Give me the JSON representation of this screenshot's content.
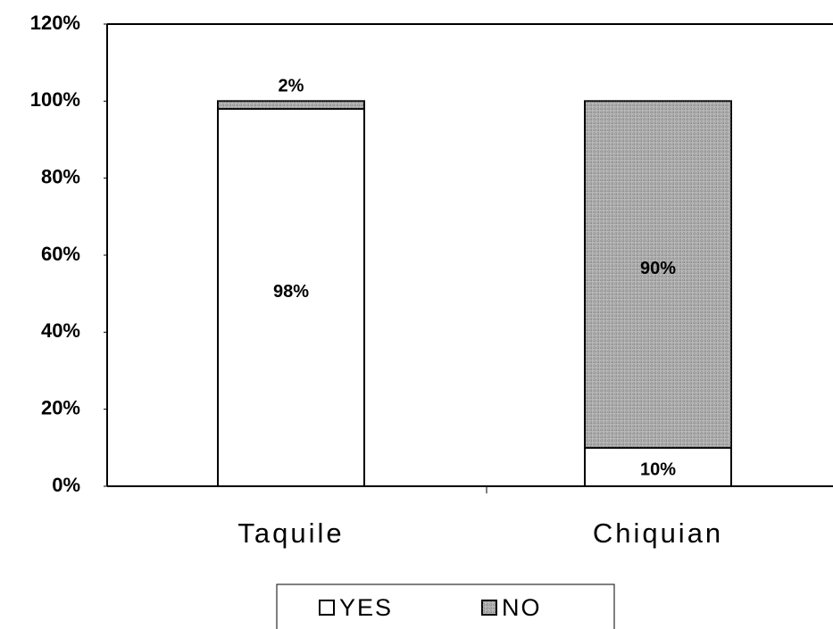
{
  "chart_data": {
    "type": "bar",
    "stacked": true,
    "categories": [
      "Taquile",
      "Chiquian"
    ],
    "series": [
      {
        "name": "YES",
        "color": "#ffffff",
        "values": [
          98,
          10
        ],
        "value_labels": [
          "98%",
          "10%"
        ]
      },
      {
        "name": "NO",
        "color": "#b8b8b8",
        "values": [
          2,
          90
        ],
        "value_labels": [
          "2%",
          "90%"
        ]
      }
    ],
    "ylim": [
      0,
      120
    ],
    "yticks": [
      {
        "value": 0,
        "label": "0%"
      },
      {
        "value": 20,
        "label": "20%"
      },
      {
        "value": 40,
        "label": "40%"
      },
      {
        "value": 60,
        "label": "60%"
      },
      {
        "value": 80,
        "label": "80%"
      },
      {
        "value": 100,
        "label": "100%"
      },
      {
        "value": 120,
        "label": "120%"
      }
    ],
    "legend": "bottom"
  }
}
